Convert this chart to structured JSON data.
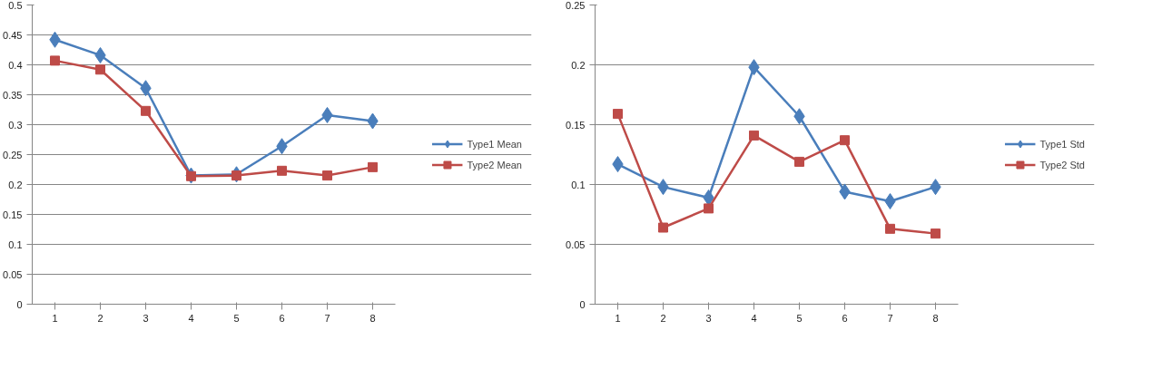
{
  "chart_data": [
    {
      "type": "line",
      "categories": [
        "1",
        "2",
        "3",
        "4",
        "5",
        "6",
        "7",
        "8"
      ],
      "ylim": [
        0,
        0.5
      ],
      "yticks": [
        0,
        0.05,
        0.1,
        0.15,
        0.2,
        0.25,
        0.3,
        0.35,
        0.4,
        0.45,
        0.5
      ],
      "grid": "y",
      "legend": "right",
      "series": [
        {
          "name": "Type1 Mean",
          "color": "#4a7ebb",
          "marker": "diamond",
          "values": [
            0.442,
            0.416,
            0.361,
            0.215,
            0.217,
            0.264,
            0.316,
            0.306
          ]
        },
        {
          "name": "Type2 Mean",
          "color": "#be4b48",
          "marker": "square",
          "values": [
            0.407,
            0.392,
            0.323,
            0.214,
            0.215,
            0.223,
            0.215,
            0.229
          ]
        }
      ]
    },
    {
      "type": "line",
      "categories": [
        "1",
        "2",
        "3",
        "4",
        "5",
        "6",
        "7",
        "8"
      ],
      "ylim": [
        0,
        0.25
      ],
      "yticks": [
        0,
        0.05,
        0.1,
        0.15,
        0.2,
        0.25
      ],
      "grid": "y",
      "legend": "right",
      "series": [
        {
          "name": "Type1 Std",
          "color": "#4a7ebb",
          "marker": "diamond",
          "values": [
            0.117,
            0.098,
            0.089,
            0.198,
            0.157,
            0.094,
            0.086,
            0.098
          ]
        },
        {
          "name": "Type2 Std",
          "color": "#be4b48",
          "marker": "square",
          "values": [
            0.159,
            0.064,
            0.08,
            0.141,
            0.119,
            0.137,
            0.063,
            0.059
          ]
        }
      ]
    }
  ]
}
